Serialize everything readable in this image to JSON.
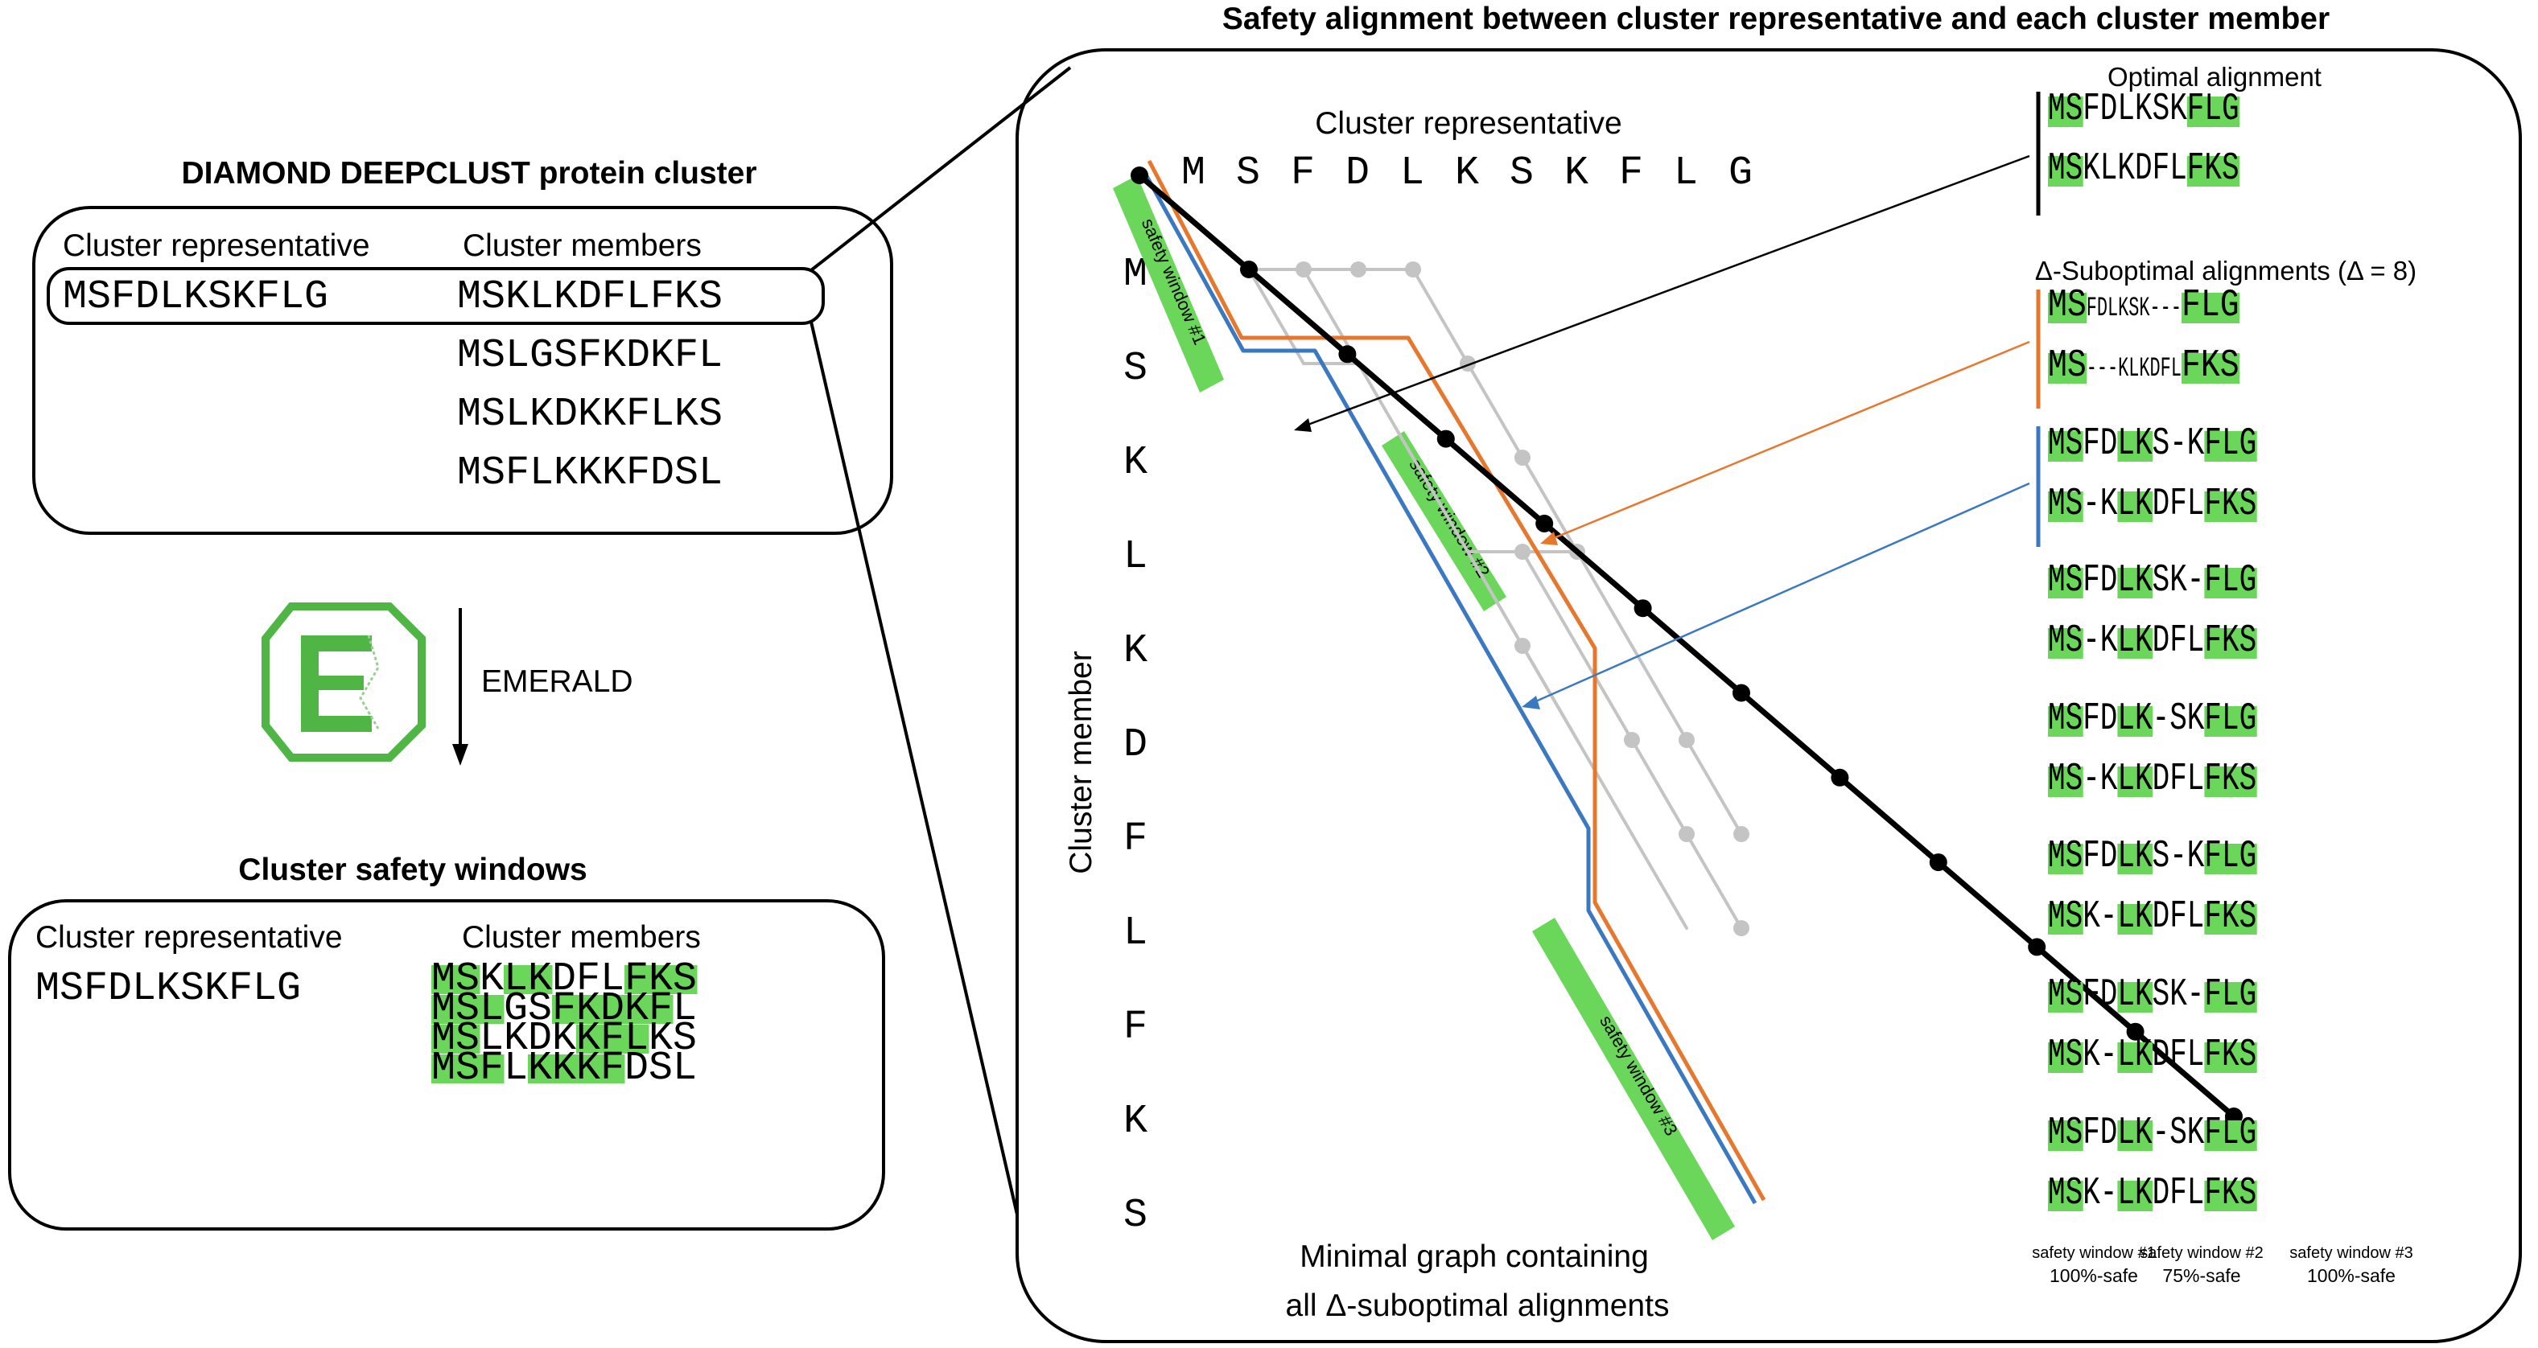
{
  "title": "Safety alignment between cluster representative and each cluster member",
  "colors": {
    "green": "#6ad75a",
    "orange": "#e8772e",
    "blue": "#3b78c2",
    "gray": "#c4c4c4",
    "black": "#000000",
    "emerald": "#4fb545"
  },
  "top_cluster": {
    "title": "DIAMOND DEEPCLUST protein cluster",
    "rep_header": "Cluster representative",
    "members_header": "Cluster members",
    "representative": "MSFDLKSKFLG",
    "members": [
      "MSKLKDFLFKS",
      "MSLGSFKDKFL",
      "MSLKDKKFLKS",
      "MSFLKKKFDSL"
    ]
  },
  "emerald": {
    "icon": "emerald-logo-icon",
    "letter": "E",
    "label": "EMERALD"
  },
  "bottom_cluster": {
    "title": "Cluster safety windows",
    "rep_header": "Cluster representative",
    "members_header": "Cluster members",
    "representative": "MSFDLKSKFLG",
    "members": [
      {
        "seq": "MSKLKDFLFKS",
        "safe": [
          0,
          1,
          3,
          4,
          8,
          9,
          10
        ]
      },
      {
        "seq": "MSLGSFKDKFL",
        "safe": [
          0,
          1,
          2,
          5,
          6,
          7,
          8,
          9
        ]
      },
      {
        "seq": "MSLKDKKFLKS",
        "safe": [
          0,
          1,
          6,
          7,
          8
        ]
      },
      {
        "seq": "MSFLKKKFDSL",
        "safe": [
          0,
          1,
          2,
          4,
          5,
          6,
          7
        ]
      }
    ]
  },
  "graph": {
    "rep_label": "Cluster representative",
    "rep_seq": [
      "M",
      "S",
      "F",
      "D",
      "L",
      "K",
      "S",
      "K",
      "F",
      "L",
      "G"
    ],
    "member_label": "Cluster member",
    "member_seq": [
      "M",
      "S",
      "K",
      "L",
      "K",
      "D",
      "F",
      "L",
      "F",
      "K",
      "S"
    ],
    "caption_line1": "Minimal graph containing",
    "caption_line2": "all Δ-suboptimal alignments",
    "windows": [
      "safety window #1",
      "safety window #2",
      "safety window #3"
    ]
  },
  "alignments": {
    "optimal_title": "Optimal alignment",
    "optimal": [
      [
        {
          "t": "MS",
          "g": 1
        },
        {
          "t": "FDLKSK",
          "g": 0
        },
        {
          "t": "FLG",
          "g": 1
        }
      ],
      [
        {
          "t": "MS",
          "g": 1
        },
        {
          "t": "KLKDFL",
          "g": 0
        },
        {
          "t": "FKS",
          "g": 1
        }
      ]
    ],
    "suboptimal_title": "Δ-Suboptimal alignments (Δ = 8)",
    "suboptimal": [
      [
        [
          {
            "t": "MS",
            "g": 1
          },
          {
            "t": "FDLKSK---",
            "g": 0,
            "s": 1
          },
          {
            "t": "FLG",
            "g": 1
          }
        ],
        [
          {
            "t": "MS",
            "g": 1
          },
          {
            "t": "---KLKDFL",
            "g": 0,
            "s": 1
          },
          {
            "t": "FKS",
            "g": 1
          }
        ]
      ],
      [
        [
          {
            "t": "MS",
            "g": 1
          },
          {
            "t": "FD",
            "g": 0
          },
          {
            "t": "LK",
            "g": 1
          },
          {
            "t": "S-K",
            "g": 0
          },
          {
            "t": "FLG",
            "g": 1
          }
        ],
        [
          {
            "t": "MS",
            "g": 1
          },
          {
            "t": "-K",
            "g": 0
          },
          {
            "t": "LK",
            "g": 1
          },
          {
            "t": "DFL",
            "g": 0
          },
          {
            "t": "FKS",
            "g": 1
          }
        ]
      ],
      [
        [
          {
            "t": "MS",
            "g": 1
          },
          {
            "t": "FD",
            "g": 0
          },
          {
            "t": "LK",
            "g": 1
          },
          {
            "t": "SK-",
            "g": 0
          },
          {
            "t": "FLG",
            "g": 1
          }
        ],
        [
          {
            "t": "MS",
            "g": 1
          },
          {
            "t": "-K",
            "g": 0
          },
          {
            "t": "LK",
            "g": 1
          },
          {
            "t": "DFL",
            "g": 0
          },
          {
            "t": "FKS",
            "g": 1
          }
        ]
      ],
      [
        [
          {
            "t": "MS",
            "g": 1
          },
          {
            "t": "FD",
            "g": 0
          },
          {
            "t": "LK",
            "g": 1
          },
          {
            "t": "-SK",
            "g": 0
          },
          {
            "t": "FLG",
            "g": 1
          }
        ],
        [
          {
            "t": "MS",
            "g": 1
          },
          {
            "t": "-K",
            "g": 0
          },
          {
            "t": "LK",
            "g": 1
          },
          {
            "t": "DFL",
            "g": 0
          },
          {
            "t": "FKS",
            "g": 1
          }
        ]
      ],
      [
        [
          {
            "t": "MS",
            "g": 1
          },
          {
            "t": "FD",
            "g": 0
          },
          {
            "t": "LK",
            "g": 1
          },
          {
            "t": "S-K",
            "g": 0
          },
          {
            "t": "FLG",
            "g": 1
          }
        ],
        [
          {
            "t": "MS",
            "g": 1
          },
          {
            "t": "K-",
            "g": 0
          },
          {
            "t": "LK",
            "g": 1
          },
          {
            "t": "DFL",
            "g": 0
          },
          {
            "t": "FKS",
            "g": 1
          }
        ]
      ],
      [
        [
          {
            "t": "MS",
            "g": 1
          },
          {
            "t": "FD",
            "g": 0
          },
          {
            "t": "LK",
            "g": 1
          },
          {
            "t": "SK-",
            "g": 0
          },
          {
            "t": "FLG",
            "g": 1
          }
        ],
        [
          {
            "t": "MS",
            "g": 1
          },
          {
            "t": "K-",
            "g": 0
          },
          {
            "t": "LK",
            "g": 1
          },
          {
            "t": "DFL",
            "g": 0
          },
          {
            "t": "FKS",
            "g": 1
          }
        ]
      ],
      [
        [
          {
            "t": "MS",
            "g": 1
          },
          {
            "t": "FD",
            "g": 0
          },
          {
            "t": "LK",
            "g": 1
          },
          {
            "t": "-SK",
            "g": 0
          },
          {
            "t": "FLG",
            "g": 1
          }
        ],
        [
          {
            "t": "MS",
            "g": 1
          },
          {
            "t": "K-",
            "g": 0
          },
          {
            "t": "LK",
            "g": 1
          },
          {
            "t": "DFL",
            "g": 0
          },
          {
            "t": "FKS",
            "g": 1
          }
        ]
      ]
    ],
    "window_labels": [
      {
        "name": "safety window #1",
        "pct": "100%-safe"
      },
      {
        "name": "safety window #2",
        "pct": "75%-safe"
      },
      {
        "name": "safety window #3",
        "pct": "100%-safe"
      }
    ]
  }
}
